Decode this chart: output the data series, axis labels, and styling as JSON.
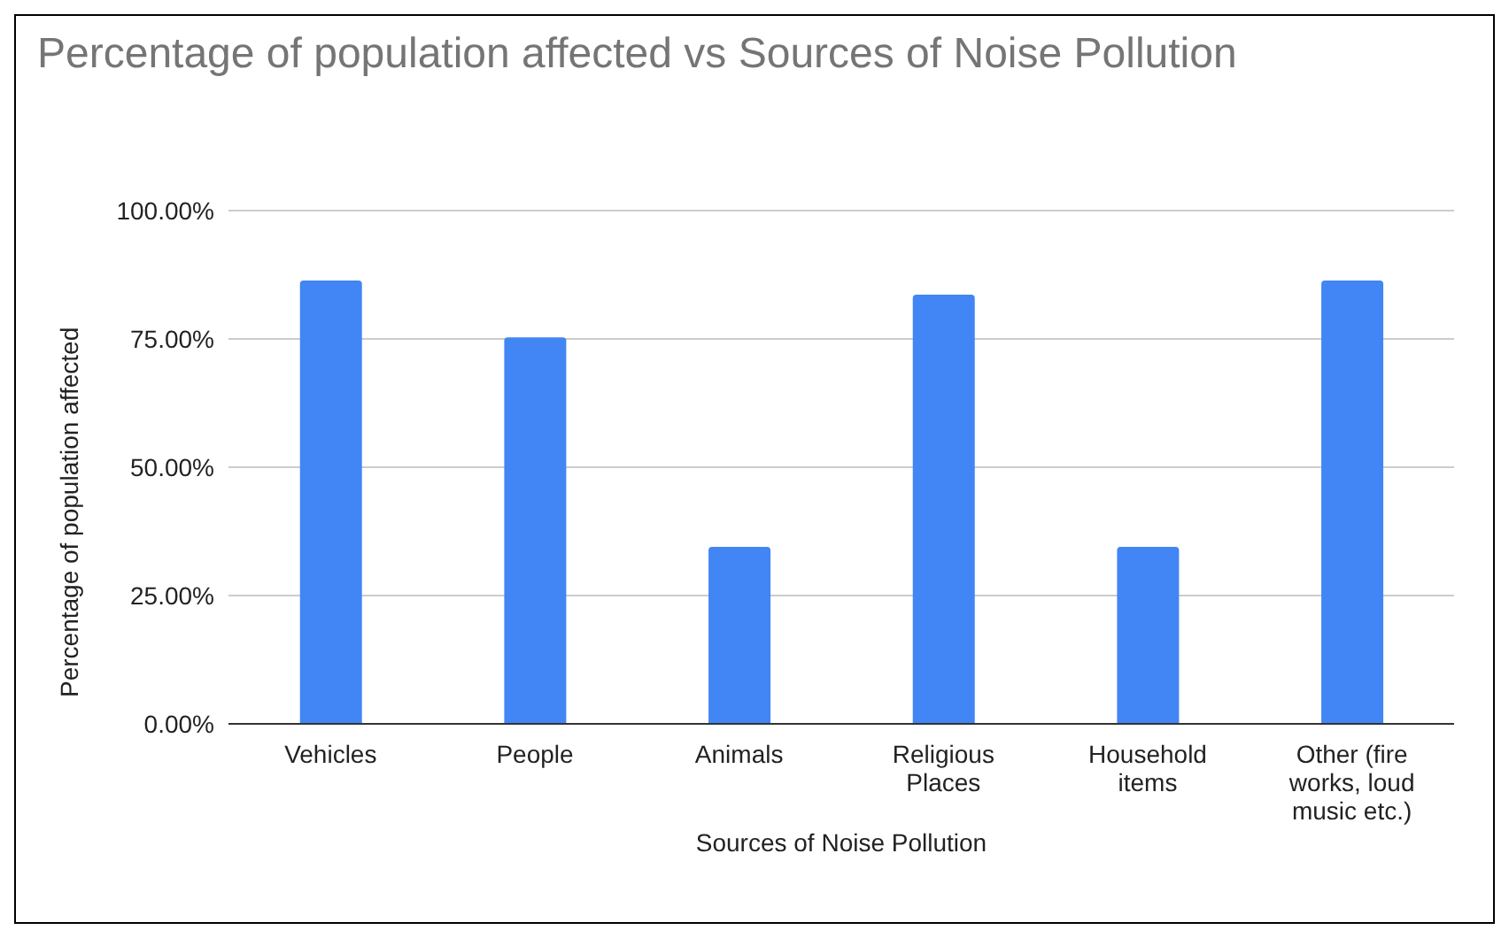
{
  "chart_data": {
    "type": "bar",
    "title": "Percentage of population affected vs Sources of Noise Pollution",
    "xlabel": "Sources of Noise Pollution",
    "ylabel": "Percentage of population affected",
    "categories": [
      "Vehicles",
      "People",
      "Animals",
      "Religious Places",
      "Household items",
      "Other (fire works, loud music etc.)"
    ],
    "values": [
      86.4,
      75.3,
      34.5,
      83.6,
      34.5,
      86.4
    ],
    "color": "#4285f4",
    "ylim": [
      0,
      100
    ],
    "yticks": [
      {
        "value": 0,
        "label": "0.00%"
      },
      {
        "value": 25,
        "label": "25.00%"
      },
      {
        "value": 50,
        "label": "50.00%"
      },
      {
        "value": 75,
        "label": "75.00%"
      },
      {
        "value": 100,
        "label": "100.00%"
      }
    ],
    "grid": "y",
    "legend": false
  }
}
